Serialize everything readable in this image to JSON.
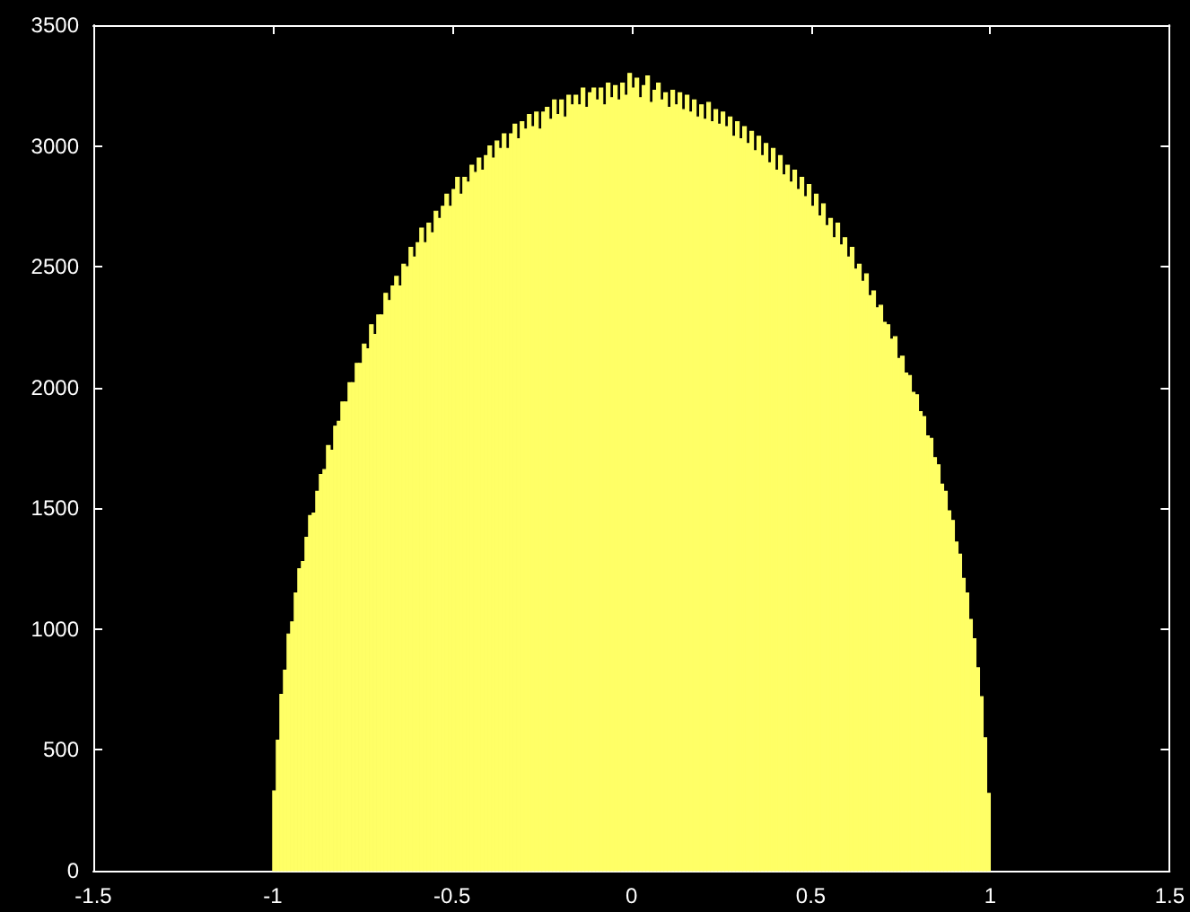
{
  "chart_data": {
    "type": "histogram",
    "bins": [
      -1,
      -0.99,
      -0.98,
      -0.97,
      -0.96,
      -0.95,
      -0.94,
      -0.93,
      -0.92,
      -0.91,
      -0.9,
      -0.89,
      -0.88,
      -0.87,
      -0.86,
      -0.85,
      -0.84,
      -0.83,
      -0.82,
      -0.81,
      -0.8,
      -0.79,
      -0.78,
      -0.77,
      -0.76,
      -0.75,
      -0.74,
      -0.73,
      -0.72,
      -0.71,
      -0.7,
      -0.69,
      -0.68,
      -0.67,
      -0.66,
      -0.65,
      -0.64,
      -0.63,
      -0.62,
      -0.61,
      -0.6,
      -0.59,
      -0.58,
      -0.57,
      -0.56,
      -0.55,
      -0.54,
      -0.53,
      -0.52,
      -0.51,
      -0.5,
      -0.49,
      -0.48,
      -0.47,
      -0.46,
      -0.45,
      -0.44,
      -0.43,
      -0.42,
      -0.41,
      -0.4,
      -0.39,
      -0.38,
      -0.37,
      -0.36,
      -0.35,
      -0.34,
      -0.33,
      -0.32,
      -0.31,
      -0.3,
      -0.29,
      -0.28,
      -0.27,
      -0.26,
      -0.25,
      -0.24,
      -0.23,
      -0.22,
      -0.21,
      -0.2,
      -0.19,
      -0.18,
      -0.17,
      -0.16,
      -0.15,
      -0.14,
      -0.13,
      -0.12,
      -0.11,
      -0.1,
      -0.09,
      -0.08,
      -0.07,
      -0.06,
      -0.05,
      -0.04,
      -0.03,
      -0.02,
      -0.01,
      0,
      0.01,
      0.02,
      0.03,
      0.04,
      0.05,
      0.06,
      0.07,
      0.08,
      0.09,
      0.1,
      0.11,
      0.12,
      0.13,
      0.14,
      0.15,
      0.16,
      0.17,
      0.18,
      0.19,
      0.2,
      0.21,
      0.22,
      0.23,
      0.24,
      0.25,
      0.26,
      0.27,
      0.28,
      0.29,
      0.3,
      0.31,
      0.32,
      0.33,
      0.34,
      0.35,
      0.36,
      0.37,
      0.38,
      0.39,
      0.4,
      0.41,
      0.42,
      0.43,
      0.44,
      0.45,
      0.46,
      0.47,
      0.48,
      0.49,
      0.5,
      0.51,
      0.52,
      0.53,
      0.54,
      0.55,
      0.56,
      0.57,
      0.58,
      0.59,
      0.6,
      0.61,
      0.62,
      0.63,
      0.64,
      0.65,
      0.66,
      0.67,
      0.68,
      0.69,
      0.7,
      0.71,
      0.72,
      0.73,
      0.74,
      0.75,
      0.76,
      0.77,
      0.78,
      0.79,
      0.8,
      0.81,
      0.82,
      0.83,
      0.84,
      0.85,
      0.86,
      0.87,
      0.88,
      0.89,
      0.9,
      0.91,
      0.92,
      0.93,
      0.94,
      0.95,
      0.96,
      0.97,
      0.98,
      0.99,
      1
    ],
    "values": [
      330,
      540,
      730,
      830,
      980,
      1030,
      1150,
      1250,
      1280,
      1380,
      1470,
      1480,
      1570,
      1640,
      1660,
      1760,
      1740,
      1840,
      1860,
      1940,
      1940,
      2020,
      2020,
      2100,
      2100,
      2180,
      2160,
      2260,
      2220,
      2300,
      2300,
      2390,
      2360,
      2420,
      2460,
      2420,
      2510,
      2500,
      2580,
      2540,
      2600,
      2660,
      2600,
      2680,
      2640,
      2730,
      2700,
      2750,
      2800,
      2750,
      2820,
      2870,
      2800,
      2870,
      2850,
      2920,
      2890,
      2950,
      2900,
      2960,
      3000,
      2950,
      3020,
      2990,
      3050,
      2990,
      3050,
      3090,
      3030,
      3100,
      3070,
      3130,
      3080,
      3140,
      3070,
      3140,
      3160,
      3110,
      3190,
      3130,
      3190,
      3120,
      3210,
      3170,
      3210,
      3170,
      3240,
      3160,
      3220,
      3240,
      3190,
      3240,
      3170,
      3260,
      3200,
      3250,
      3190,
      3260,
      3210,
      3300,
      3240,
      3280,
      3200,
      3250,
      3290,
      3180,
      3230,
      3260,
      3190,
      3220,
      3160,
      3230,
      3170,
      3220,
      3150,
      3210,
      3140,
      3190,
      3120,
      3170,
      3110,
      3180,
      3100,
      3150,
      3090,
      3140,
      3080,
      3120,
      3040,
      3100,
      3030,
      3080,
      3010,
      3060,
      2980,
      3040,
      2960,
      3010,
      2930,
      2990,
      2900,
      2960,
      2880,
      2920,
      2850,
      2900,
      2820,
      2870,
      2790,
      2840,
      2750,
      2800,
      2710,
      2760,
      2670,
      2700,
      2620,
      2680,
      2590,
      2620,
      2540,
      2580,
      2490,
      2510,
      2440,
      2470,
      2380,
      2400,
      2330,
      2340,
      2270,
      2260,
      2200,
      2210,
      2120,
      2130,
      2060,
      2050,
      1980,
      1970,
      1900,
      1880,
      1800,
      1790,
      1710,
      1680,
      1600,
      1570,
      1490,
      1450,
      1360,
      1310,
      1210,
      1150,
      1040,
      960,
      840,
      720,
      550,
      320
    ],
    "color": "#ffff66",
    "xlim": [
      -1.5,
      1.5
    ],
    "xticks": [
      -1.5,
      -1,
      -0.5,
      0,
      0.5,
      1,
      1.5
    ],
    "ylim": [
      0,
      3500
    ],
    "yticks": [
      0,
      500,
      1000,
      1500,
      2000,
      2500,
      3000,
      3500
    ],
    "grid": false
  }
}
